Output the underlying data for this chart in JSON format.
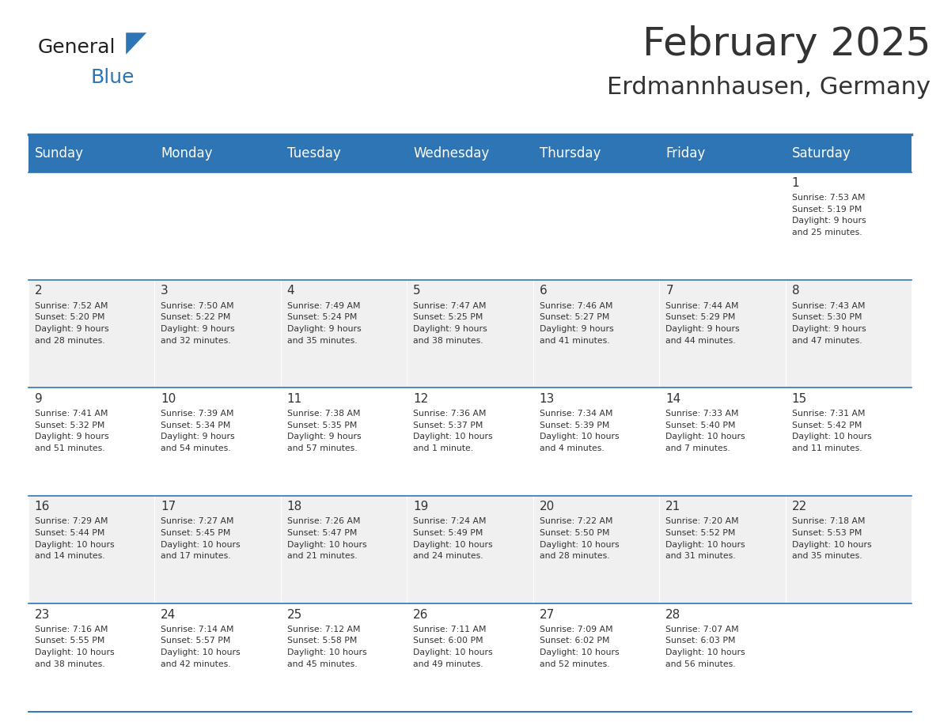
{
  "title": "February 2025",
  "subtitle": "Erdmannhausen, Germany",
  "header_bg": "#2E75B6",
  "header_text_color": "#FFFFFF",
  "cell_bg_light": "#FFFFFF",
  "cell_bg_alt": "#F0F0F0",
  "border_color": "#2E75B6",
  "text_color": "#333333",
  "day_headers": [
    "Sunday",
    "Monday",
    "Tuesday",
    "Wednesday",
    "Thursday",
    "Friday",
    "Saturday"
  ],
  "weeks": [
    [
      {
        "day": "",
        "info": ""
      },
      {
        "day": "",
        "info": ""
      },
      {
        "day": "",
        "info": ""
      },
      {
        "day": "",
        "info": ""
      },
      {
        "day": "",
        "info": ""
      },
      {
        "day": "",
        "info": ""
      },
      {
        "day": "1",
        "info": "Sunrise: 7:53 AM\nSunset: 5:19 PM\nDaylight: 9 hours\nand 25 minutes."
      }
    ],
    [
      {
        "day": "2",
        "info": "Sunrise: 7:52 AM\nSunset: 5:20 PM\nDaylight: 9 hours\nand 28 minutes."
      },
      {
        "day": "3",
        "info": "Sunrise: 7:50 AM\nSunset: 5:22 PM\nDaylight: 9 hours\nand 32 minutes."
      },
      {
        "day": "4",
        "info": "Sunrise: 7:49 AM\nSunset: 5:24 PM\nDaylight: 9 hours\nand 35 minutes."
      },
      {
        "day": "5",
        "info": "Sunrise: 7:47 AM\nSunset: 5:25 PM\nDaylight: 9 hours\nand 38 minutes."
      },
      {
        "day": "6",
        "info": "Sunrise: 7:46 AM\nSunset: 5:27 PM\nDaylight: 9 hours\nand 41 minutes."
      },
      {
        "day": "7",
        "info": "Sunrise: 7:44 AM\nSunset: 5:29 PM\nDaylight: 9 hours\nand 44 minutes."
      },
      {
        "day": "8",
        "info": "Sunrise: 7:43 AM\nSunset: 5:30 PM\nDaylight: 9 hours\nand 47 minutes."
      }
    ],
    [
      {
        "day": "9",
        "info": "Sunrise: 7:41 AM\nSunset: 5:32 PM\nDaylight: 9 hours\nand 51 minutes."
      },
      {
        "day": "10",
        "info": "Sunrise: 7:39 AM\nSunset: 5:34 PM\nDaylight: 9 hours\nand 54 minutes."
      },
      {
        "day": "11",
        "info": "Sunrise: 7:38 AM\nSunset: 5:35 PM\nDaylight: 9 hours\nand 57 minutes."
      },
      {
        "day": "12",
        "info": "Sunrise: 7:36 AM\nSunset: 5:37 PM\nDaylight: 10 hours\nand 1 minute."
      },
      {
        "day": "13",
        "info": "Sunrise: 7:34 AM\nSunset: 5:39 PM\nDaylight: 10 hours\nand 4 minutes."
      },
      {
        "day": "14",
        "info": "Sunrise: 7:33 AM\nSunset: 5:40 PM\nDaylight: 10 hours\nand 7 minutes."
      },
      {
        "day": "15",
        "info": "Sunrise: 7:31 AM\nSunset: 5:42 PM\nDaylight: 10 hours\nand 11 minutes."
      }
    ],
    [
      {
        "day": "16",
        "info": "Sunrise: 7:29 AM\nSunset: 5:44 PM\nDaylight: 10 hours\nand 14 minutes."
      },
      {
        "day": "17",
        "info": "Sunrise: 7:27 AM\nSunset: 5:45 PM\nDaylight: 10 hours\nand 17 minutes."
      },
      {
        "day": "18",
        "info": "Sunrise: 7:26 AM\nSunset: 5:47 PM\nDaylight: 10 hours\nand 21 minutes."
      },
      {
        "day": "19",
        "info": "Sunrise: 7:24 AM\nSunset: 5:49 PM\nDaylight: 10 hours\nand 24 minutes."
      },
      {
        "day": "20",
        "info": "Sunrise: 7:22 AM\nSunset: 5:50 PM\nDaylight: 10 hours\nand 28 minutes."
      },
      {
        "day": "21",
        "info": "Sunrise: 7:20 AM\nSunset: 5:52 PM\nDaylight: 10 hours\nand 31 minutes."
      },
      {
        "day": "22",
        "info": "Sunrise: 7:18 AM\nSunset: 5:53 PM\nDaylight: 10 hours\nand 35 minutes."
      }
    ],
    [
      {
        "day": "23",
        "info": "Sunrise: 7:16 AM\nSunset: 5:55 PM\nDaylight: 10 hours\nand 38 minutes."
      },
      {
        "day": "24",
        "info": "Sunrise: 7:14 AM\nSunset: 5:57 PM\nDaylight: 10 hours\nand 42 minutes."
      },
      {
        "day": "25",
        "info": "Sunrise: 7:12 AM\nSunset: 5:58 PM\nDaylight: 10 hours\nand 45 minutes."
      },
      {
        "day": "26",
        "info": "Sunrise: 7:11 AM\nSunset: 6:00 PM\nDaylight: 10 hours\nand 49 minutes."
      },
      {
        "day": "27",
        "info": "Sunrise: 7:09 AM\nSunset: 6:02 PM\nDaylight: 10 hours\nand 52 minutes."
      },
      {
        "day": "28",
        "info": "Sunrise: 7:07 AM\nSunset: 6:03 PM\nDaylight: 10 hours\nand 56 minutes."
      },
      {
        "day": "",
        "info": ""
      }
    ]
  ],
  "logo_text_general": "General",
  "logo_text_blue": "Blue",
  "logo_color_general": "#222222",
  "logo_color_blue": "#2E75B6",
  "logo_triangle_color": "#2E75B6"
}
